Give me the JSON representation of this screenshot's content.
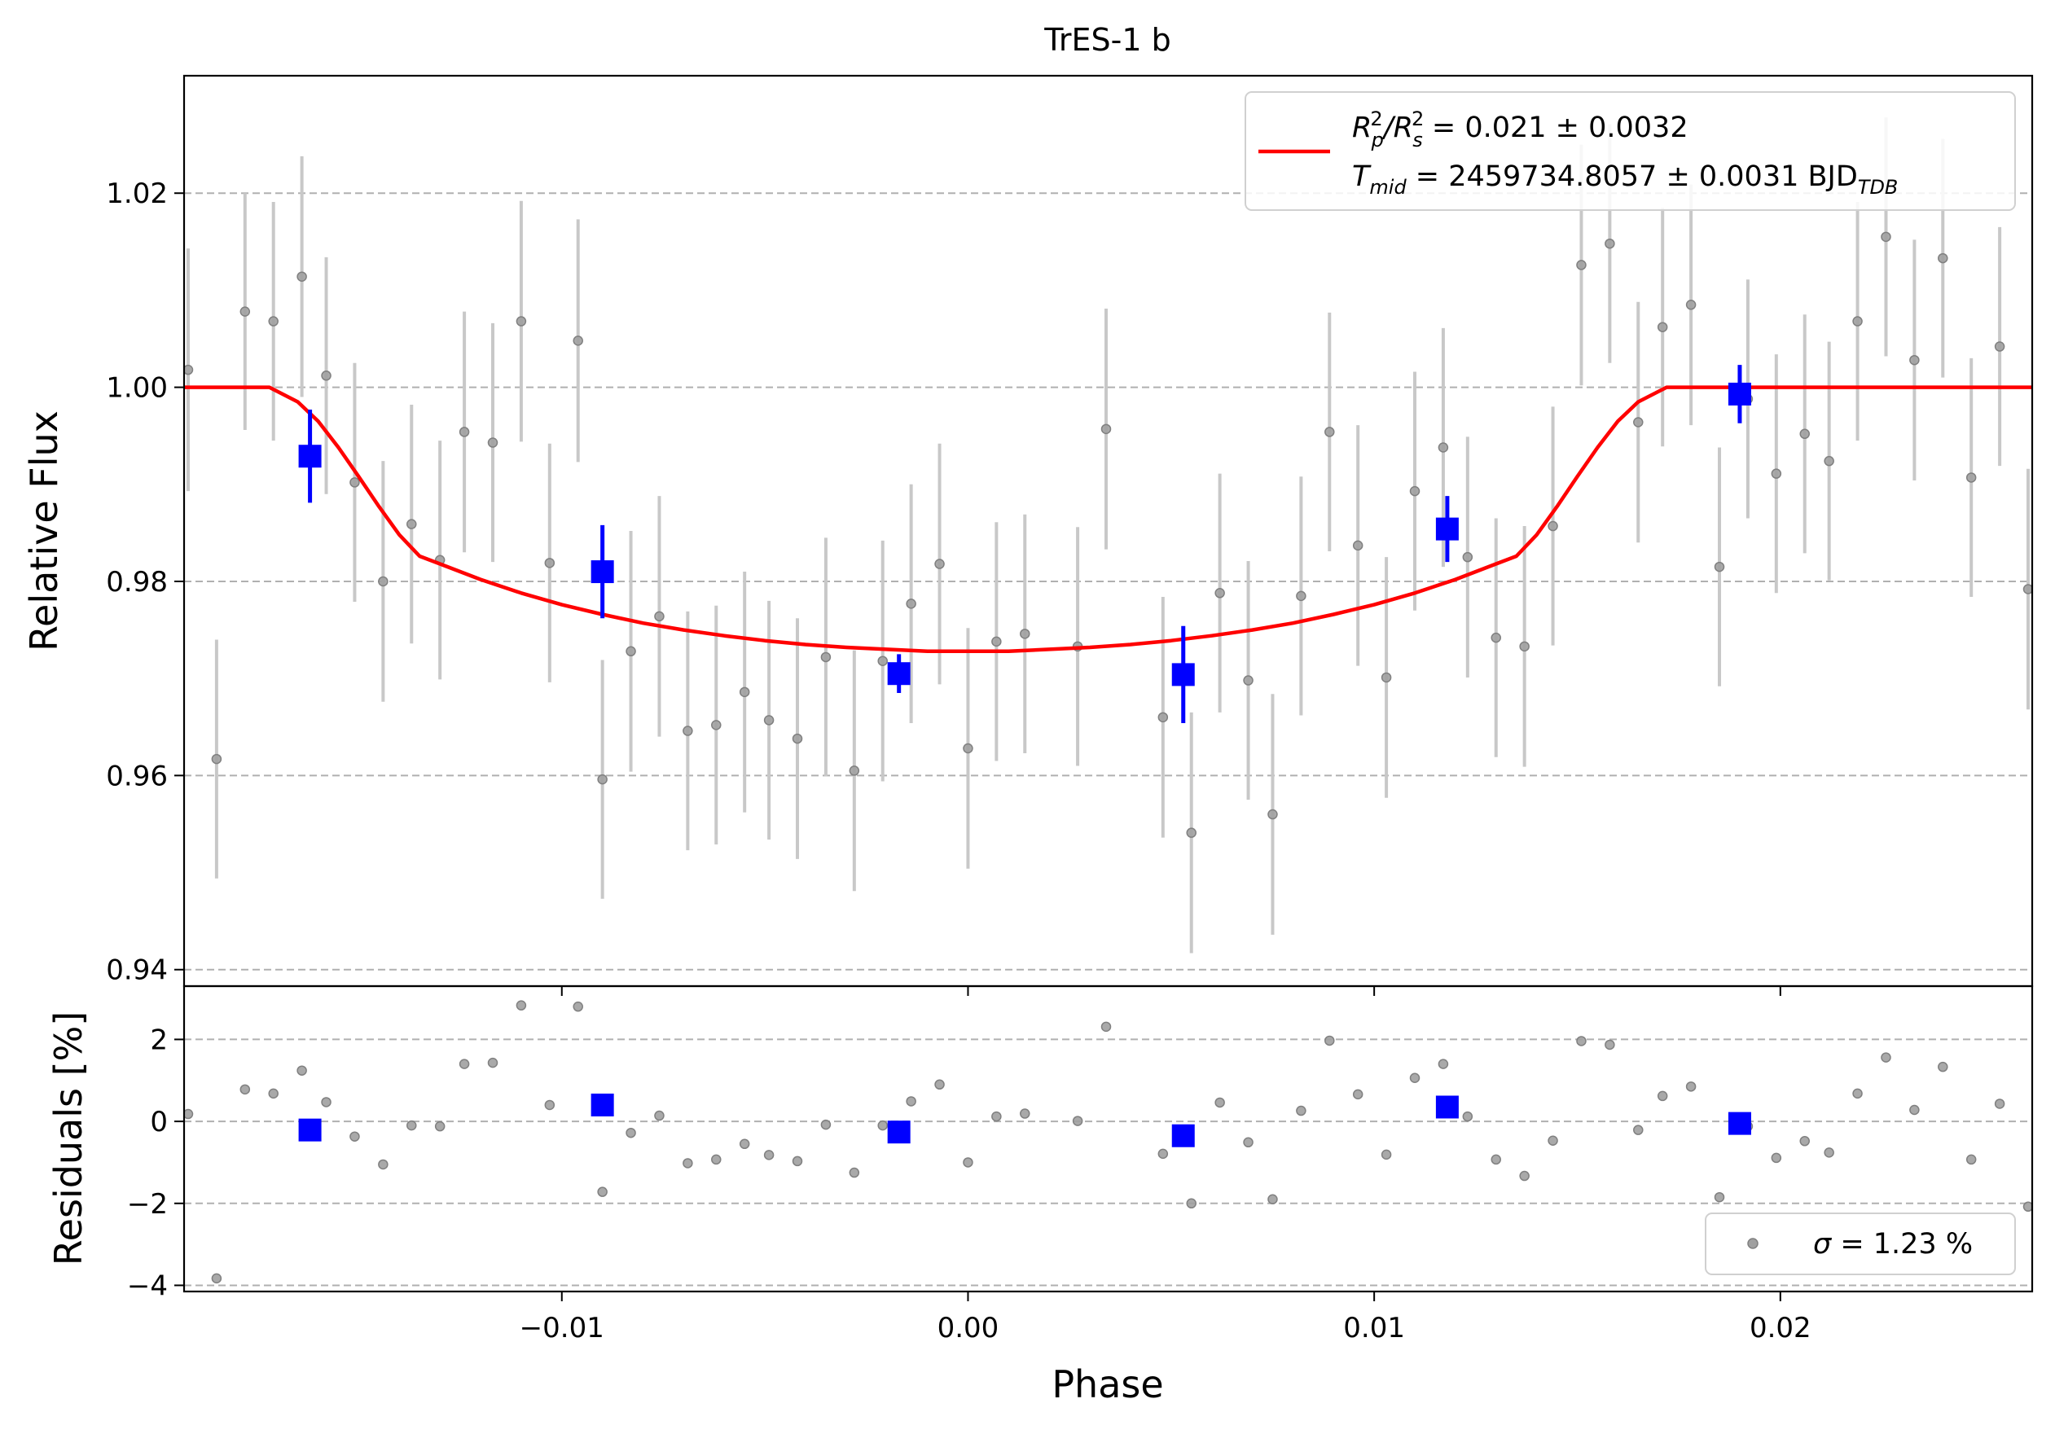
{
  "chart_data": [
    {
      "type": "scatter",
      "panel": "main",
      "title": "TrES-1 b",
      "xlabel": "",
      "ylabel": "Relative Flux",
      "xlim": [
        -0.0193,
        0.0262
      ],
      "ylim": [
        0.9383,
        1.0321
      ],
      "grid": "y-dashed",
      "x_ticks": [
        -0.01,
        0.0,
        0.01,
        0.02
      ],
      "x_tick_labels": [
        "−0.01",
        "0.00",
        "0.01",
        "0.02"
      ],
      "y_ticks": [
        0.94,
        0.96,
        0.98,
        1.0,
        1.02
      ],
      "y_tick_labels": [
        "0.94",
        "0.96",
        "0.98",
        "1.00",
        "1.02"
      ],
      "legend": {
        "placement": "upper-right",
        "line1_prefix": "R",
        "line1_sub_p": "p",
        "line1_sup": "2",
        "line1_sep": "/R",
        "line1_sub_s": "s",
        "line1_value": " = 0.021 ± 0.0032",
        "line2_prefix": "T",
        "line2_sub": "mid",
        "line2_value": " = 2459734.8057 ± 0.0031 BJD",
        "line2_unit_sub": "TDB"
      },
      "colors": {
        "model": "#ff0000",
        "binned": "#0000ff",
        "raw_points": "#808080",
        "raw_errorbars": "#c8c8c8",
        "grid": "#b0b0b0"
      },
      "series": [
        {
          "kind": "raw",
          "x": [
            -0.0192,
            -0.0185,
            -0.0178,
            -0.0171,
            -0.0164,
            -0.0158,
            -0.0151,
            -0.0144,
            -0.0137,
            -0.013,
            -0.0124,
            -0.0117,
            -0.011,
            -0.0103,
            -0.0096,
            -0.009,
            -0.0083,
            -0.0076,
            -0.0069,
            -0.0062,
            -0.0055,
            -0.0049,
            -0.0042,
            -0.0035,
            -0.0028,
            -0.0021,
            -0.0014,
            -0.0007,
            0.0,
            0.0007,
            0.0014,
            0.0027,
            0.0034,
            0.0048,
            0.0055,
            0.0062,
            0.0069,
            0.0075,
            0.0082,
            0.0089,
            0.0096,
            0.0103,
            0.011,
            0.0117,
            0.0123,
            0.013,
            0.0137,
            0.0144,
            0.0151,
            0.0158,
            0.0165,
            0.0171,
            0.0178,
            0.0185,
            0.0192,
            0.0199,
            0.0206,
            0.0212,
            0.0219,
            0.0226,
            0.0233,
            0.024,
            0.0247,
            0.0254,
            0.0261
          ],
          "y": [
            1.0018,
            0.9617,
            1.0078,
            1.0068,
            1.0114,
            1.0012,
            0.9902,
            0.98,
            0.9859,
            0.9822,
            0.9954,
            0.9943,
            1.0068,
            0.9819,
            1.0048,
            0.9596,
            0.9728,
            0.9764,
            0.9646,
            0.9652,
            0.9686,
            0.9657,
            0.9638,
            0.9722,
            0.9605,
            0.9718,
            0.9777,
            0.9818,
            0.9628,
            0.9738,
            0.9746,
            0.9733,
            0.9957,
            0.966,
            0.9541,
            0.9788,
            0.9698,
            0.956,
            0.9785,
            0.9954,
            0.9837,
            0.9701,
            0.9893,
            0.9938,
            0.9825,
            0.9742,
            0.9733,
            0.9857,
            1.0126,
            1.0148,
            0.9964,
            1.0062,
            1.0085,
            0.9815,
            0.9988,
            0.9911,
            0.9952,
            0.9924,
            1.0068,
            1.0155,
            1.0028,
            1.0133,
            0.9907,
            1.0042,
            0.9792
          ],
          "err": [
            0.0125,
            0.0123,
            0.0122,
            0.0123,
            0.0124,
            0.0122,
            0.0123,
            0.0124,
            0.0123,
            0.0123,
            0.0124,
            0.0123,
            0.0124,
            0.0123,
            0.0125,
            0.0123,
            0.0124,
            0.0124,
            0.0123,
            0.0123,
            0.0124,
            0.0123,
            0.0124,
            0.0123,
            0.0124,
            0.0124,
            0.0123,
            0.0124,
            0.0124,
            0.0123,
            0.0123,
            0.0123,
            0.0124,
            0.0124,
            0.0124,
            0.0123,
            0.0123,
            0.0124,
            0.0123,
            0.0123,
            0.0124,
            0.0124,
            0.0123,
            0.0123,
            0.0124,
            0.0123,
            0.0124,
            0.0123,
            0.0124,
            0.0123,
            0.0124,
            0.0123,
            0.0124,
            0.0123,
            0.0123,
            0.0123,
            0.0123,
            0.0123,
            0.0123,
            0.0123,
            0.0124,
            0.0123,
            0.0123,
            0.0123,
            0.0124
          ]
        },
        {
          "kind": "binned",
          "x": [
            -0.0162,
            -0.009,
            -0.0017,
            0.0053,
            0.0118,
            0.019
          ],
          "y": [
            0.9929,
            0.981,
            0.9705,
            0.9704,
            0.9854,
            0.9993
          ],
          "err": [
            0.0048,
            0.0048,
            0.002,
            0.005,
            0.0034,
            0.003
          ]
        },
        {
          "kind": "model",
          "x": [
            -0.0193,
            -0.0172,
            -0.0165,
            -0.016,
            -0.0155,
            -0.015,
            -0.0145,
            -0.014,
            -0.0135,
            -0.013,
            -0.012,
            -0.011,
            -0.01,
            -0.009,
            -0.008,
            -0.007,
            -0.006,
            -0.005,
            -0.004,
            -0.003,
            -0.002,
            -0.001,
            0.0,
            0.001,
            0.002,
            0.003,
            0.004,
            0.005,
            0.006,
            0.007,
            0.008,
            0.009,
            0.01,
            0.011,
            0.012,
            0.013,
            0.0135,
            0.014,
            0.0145,
            0.015,
            0.0155,
            0.016,
            0.0165,
            0.0172,
            0.0262
          ],
          "y": [
            1.0,
            1.0,
            0.9985,
            0.9965,
            0.9938,
            0.9908,
            0.9877,
            0.9848,
            0.9826,
            0.9818,
            0.9802,
            0.9788,
            0.9776,
            0.9766,
            0.9757,
            0.975,
            0.9744,
            0.9739,
            0.9735,
            0.9732,
            0.973,
            0.9728,
            0.9728,
            0.9728,
            0.973,
            0.9732,
            0.9735,
            0.9739,
            0.9744,
            0.975,
            0.9757,
            0.9766,
            0.9776,
            0.9788,
            0.9802,
            0.9818,
            0.9826,
            0.9848,
            0.9877,
            0.9908,
            0.9938,
            0.9965,
            0.9985,
            1.0,
            1.0
          ]
        }
      ]
    },
    {
      "type": "scatter",
      "panel": "residuals",
      "xlabel": "Phase",
      "ylabel": "Residuals [%]",
      "xlim": [
        -0.0193,
        0.0262
      ],
      "ylim": [
        -4.15,
        3.3
      ],
      "grid": "y-dashed",
      "x_ticks": [
        -0.01,
        0.0,
        0.01,
        0.02
      ],
      "x_tick_labels": [
        "−0.01",
        "0.00",
        "0.01",
        "0.02"
      ],
      "y_ticks": [
        -4,
        -2,
        0,
        2
      ],
      "y_tick_labels": [
        "−4",
        "−2",
        "0",
        "2"
      ],
      "legend": {
        "placement": "lower-right",
        "sigma_symbol": "σ",
        "label": " = 1.23 %"
      },
      "series": [
        {
          "kind": "raw",
          "x": [
            -0.0192,
            -0.0185,
            -0.0178,
            -0.0171,
            -0.0164,
            -0.0158,
            -0.0151,
            -0.0144,
            -0.0137,
            -0.013,
            -0.0124,
            -0.0117,
            -0.011,
            -0.0103,
            -0.0096,
            -0.009,
            -0.0083,
            -0.0076,
            -0.0069,
            -0.0062,
            -0.0055,
            -0.0049,
            -0.0042,
            -0.0035,
            -0.0028,
            -0.0021,
            -0.0014,
            -0.0007,
            0.0,
            0.0007,
            0.0014,
            0.0027,
            0.0034,
            0.0048,
            0.0055,
            0.0062,
            0.0069,
            0.0075,
            0.0082,
            0.0089,
            0.0096,
            0.0103,
            0.011,
            0.0117,
            0.0123,
            0.013,
            0.0137,
            0.0144,
            0.0151,
            0.0158,
            0.0165,
            0.0171,
            0.0178,
            0.0185,
            0.0192,
            0.0199,
            0.0206,
            0.0212,
            0.0219,
            0.0226,
            0.0233,
            0.024,
            0.0247,
            0.0254,
            0.0261
          ],
          "y": [
            0.18,
            -3.83,
            0.78,
            0.68,
            1.24,
            0.47,
            -0.37,
            -1.05,
            -0.1,
            -0.12,
            1.4,
            1.43,
            2.83,
            0.4,
            2.8,
            -1.72,
            -0.28,
            0.14,
            -1.02,
            -0.93,
            -0.55,
            -0.82,
            -0.97,
            -0.08,
            -1.25,
            -0.1,
            0.49,
            0.9,
            -1.0,
            0.12,
            0.19,
            0.01,
            2.31,
            -0.79,
            -2.0,
            0.46,
            -0.51,
            -1.9,
            0.26,
            1.97,
            0.66,
            -0.81,
            1.06,
            1.4,
            0.12,
            -0.93,
            -1.33,
            -0.47,
            1.96,
            1.87,
            -0.21,
            0.62,
            0.85,
            -1.85,
            -0.12,
            -0.89,
            -0.48,
            -0.76,
            0.68,
            1.56,
            0.28,
            1.33,
            -0.93,
            0.43,
            -2.08
          ]
        },
        {
          "kind": "binned",
          "x": [
            -0.0162,
            -0.009,
            -0.0017,
            0.0053,
            0.0118,
            0.019
          ],
          "y": [
            -0.21,
            0.4,
            -0.26,
            -0.35,
            0.35,
            -0.05
          ]
        }
      ]
    }
  ]
}
